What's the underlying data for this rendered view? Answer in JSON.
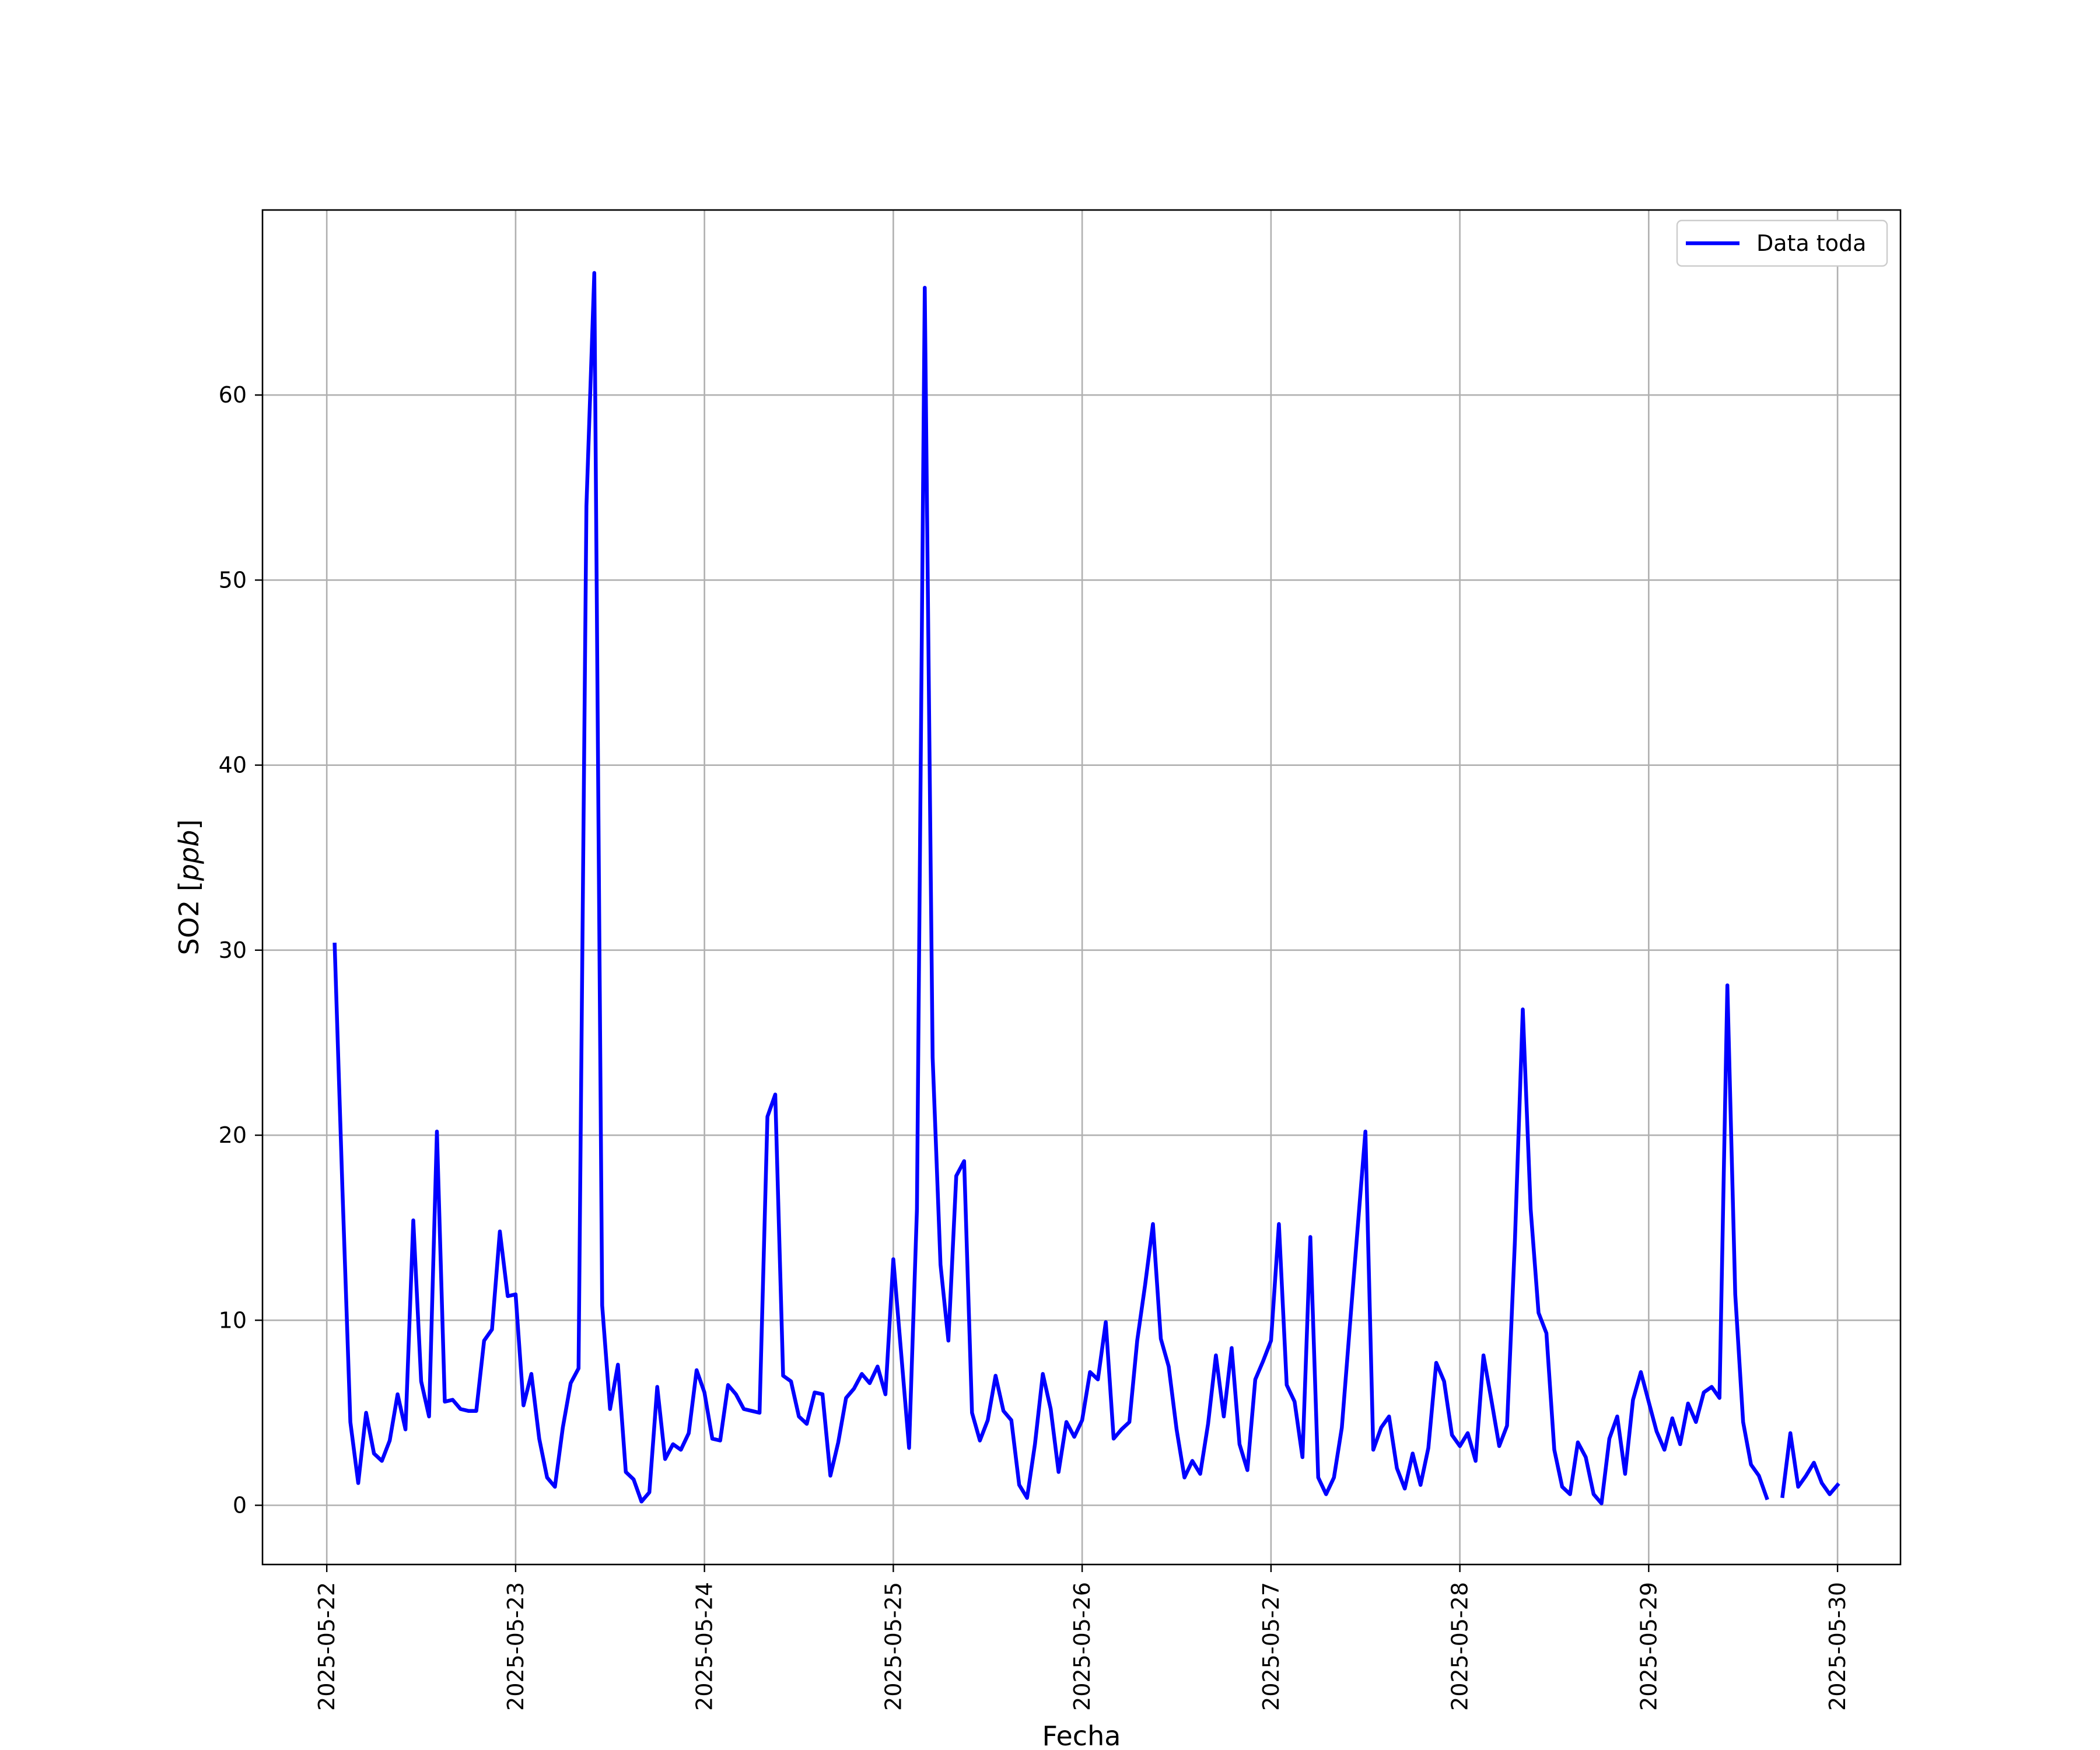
{
  "chart_data": {
    "type": "line",
    "title": "",
    "xlabel": "Fecha",
    "ylabel_text": "SO2 [",
    "ylabel_unit": "ppb",
    "ylabel_close": "]",
    "xlim": [
      "2025-05-21 15:50",
      "2025-05-30 08:00"
    ],
    "ylim": [
      -3.2,
      70
    ],
    "x_ticks": [
      "2025-05-22",
      "2025-05-23",
      "2025-05-24",
      "2025-05-25",
      "2025-05-26",
      "2025-05-27",
      "2025-05-28",
      "2025-05-29",
      "2025-05-30"
    ],
    "y_ticks": [
      0,
      10,
      20,
      30,
      40,
      50,
      60
    ],
    "grid": true,
    "legend_position": "top-right",
    "series": [
      {
        "name": "Data toda",
        "color": "#0000ff",
        "start": "2025-05-22 01:00",
        "step_hours": 1,
        "values": [
          30.3,
          17.0,
          4.5,
          1.2,
          5.0,
          2.8,
          2.4,
          3.5,
          6.0,
          4.1,
          15.4,
          6.7,
          4.8,
          20.2,
          5.6,
          5.7,
          5.2,
          5.1,
          5.1,
          8.9,
          9.5,
          14.8,
          11.3,
          11.4,
          5.4,
          7.1,
          3.6,
          1.5,
          1.0,
          4.2,
          6.6,
          7.4,
          54.0,
          66.6,
          10.8,
          5.2,
          7.6,
          1.8,
          1.4,
          0.2,
          0.7,
          6.4,
          2.5,
          3.3,
          3.0,
          3.9,
          7.3,
          6.1,
          3.6,
          3.5,
          6.5,
          6.0,
          5.2,
          5.1,
          5.0,
          21.0,
          22.2,
          7.0,
          6.7,
          4.8,
          4.4,
          6.1,
          6.0,
          1.6,
          3.4,
          5.8,
          6.3,
          7.1,
          6.6,
          7.5,
          6.0,
          13.3,
          8.2,
          3.1,
          16.0,
          65.8,
          24.2,
          13.0,
          8.9,
          17.8,
          18.6,
          5.0,
          3.5,
          4.6,
          7.0,
          5.1,
          4.6,
          1.1,
          0.4,
          3.3,
          7.1,
          5.2,
          1.8,
          4.5,
          3.7,
          4.6,
          7.2,
          6.8,
          9.9,
          3.6,
          4.1,
          4.5,
          8.9,
          11.9,
          15.2,
          9.0,
          7.5,
          4.1,
          1.5,
          2.4,
          1.7,
          4.4,
          8.1,
          4.8,
          8.5,
          3.3,
          1.9,
          6.8,
          7.8,
          8.9,
          15.2,
          6.5,
          5.6,
          2.6,
          14.5,
          1.5,
          0.6,
          1.5,
          4.2,
          9.6,
          14.9,
          20.2,
          3.0,
          4.2,
          4.8,
          2.0,
          0.9,
          2.8,
          1.1,
          3.1,
          7.7,
          6.7,
          3.8,
          3.2,
          3.9,
          2.4,
          8.1,
          5.7,
          3.2,
          4.3,
          14.3,
          26.8,
          16.0,
          10.4,
          9.3,
          3.0,
          1.0,
          0.6,
          3.4,
          2.6,
          0.6,
          0.1,
          3.6,
          4.8,
          1.7,
          5.7,
          7.2,
          5.6,
          4.0,
          3.0,
          4.7,
          3.3,
          5.5,
          4.5,
          6.1,
          6.4,
          5.8,
          28.1,
          11.4,
          4.5,
          2.2,
          1.6,
          0.4,
          null,
          0.5,
          3.9,
          1.0,
          1.6,
          2.3,
          1.2,
          0.6,
          1.1
        ]
      }
    ]
  }
}
